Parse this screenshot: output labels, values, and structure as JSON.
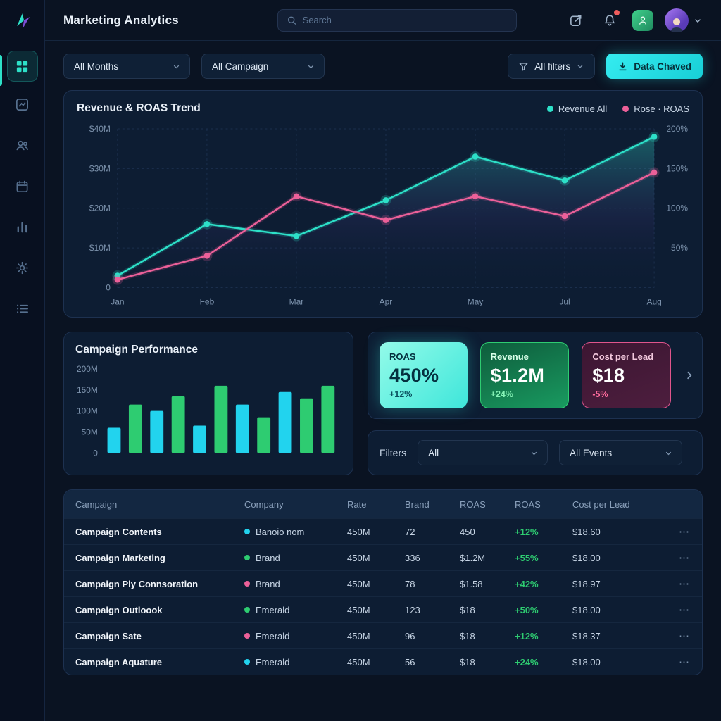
{
  "topbar": {
    "title": "Marketing Analytics",
    "search_placeholder": "Search",
    "icons": [
      "compose-icon",
      "bell-icon",
      "user-tile-icon",
      "avatar",
      "chevron-down-icon"
    ]
  },
  "sidebar": {
    "icons": [
      "dashboard-grid-icon",
      "chart-box-icon",
      "users-icon",
      "calendar-icon",
      "bar-chart-icon",
      "settings-gear-icon",
      "list-icon"
    ],
    "active_index": 0,
    "accent_color": "#2de0c8"
  },
  "filters": {
    "months": "All Months",
    "campaign": "All Campaign",
    "all_filters": "All filters",
    "export_label": "Data Chaved"
  },
  "revenue_chart": {
    "title": "Revenue & ROAS Trend",
    "legend": [
      {
        "label": "Revenue All",
        "color": "#2de0c8"
      },
      {
        "label": "Rose · ROAS",
        "color": "#ec6099"
      }
    ],
    "chart_data": {
      "type": "line",
      "x": [
        "Jan",
        "Feb",
        "Mar",
        "Apr",
        "May",
        "Jul",
        "Aug"
      ],
      "series": [
        {
          "name": "Revenue All",
          "color": "#2de0c8",
          "values": [
            3,
            16,
            13,
            22,
            33,
            27,
            38
          ]
        },
        {
          "name": "Rose ROAS",
          "color": "#ec6099",
          "values": [
            2,
            8,
            23,
            17,
            23,
            18,
            29
          ]
        }
      ],
      "y_left_ticks": [
        "$40M",
        "$30M",
        "$20M",
        "$10M",
        "0"
      ],
      "y_right_ticks": [
        "200%",
        "150%",
        "100%",
        "50%"
      ],
      "ylim": [
        0,
        40
      ],
      "grid": true,
      "legend_position": "top-right"
    }
  },
  "campaign_performance": {
    "title": "Campaign Performance",
    "chart_data": {
      "type": "bar",
      "values": [
        60,
        115,
        100,
        135,
        65,
        160,
        115,
        85,
        145,
        130,
        160
      ],
      "colors": [
        "#22d3ee",
        "#2ecc71",
        "#22d3ee",
        "#2ecc71",
        "#22d3ee",
        "#2ecc71",
        "#22d3ee",
        "#2ecc71",
        "#22d3ee",
        "#2ecc71",
        "#2ecc71"
      ],
      "y_ticks": [
        "200M",
        "150M",
        "100M",
        "50M",
        "0"
      ],
      "ylim": [
        0,
        200
      ],
      "grid": false
    }
  },
  "kpis": [
    {
      "label": "ROAS",
      "value": "450%",
      "change": "+12%",
      "style": "cyan"
    },
    {
      "label": "Revenue",
      "value": "$1.2M",
      "change": "+24%",
      "style": "green"
    },
    {
      "label": "Cost per Lead",
      "value": "$18",
      "change": "-5%",
      "style": "pink"
    }
  ],
  "filter_bar": {
    "label": "Filters",
    "select1": "All",
    "select2": "All Events"
  },
  "table": {
    "headers": [
      "Campaign",
      "Company",
      "Rate",
      "Brand",
      "ROAS",
      "ROAS",
      "Cost per Lead"
    ],
    "rows": [
      {
        "campaign": "Campaign Contents",
        "company": "Banoio nom",
        "dot": "#22d3ee",
        "rate": "450M",
        "brand": "72",
        "roas": "450",
        "change": "+12%",
        "cpl": "$18.60"
      },
      {
        "campaign": "Campaign Marketing",
        "company": "Brand",
        "dot": "#2ecc71",
        "rate": "450M",
        "brand": "336",
        "roas": "$1.2M",
        "change": "+55%",
        "cpl": "$18.00"
      },
      {
        "campaign": "Campaign Ply Connsoration",
        "company": "Brand",
        "dot": "#ec6099",
        "rate": "450M",
        "brand": "78",
        "roas": "$1.58",
        "change": "+42%",
        "cpl": "$18.97"
      },
      {
        "campaign": "Campaign Outloook",
        "company": "Emerald",
        "dot": "#2ecc71",
        "rate": "450M",
        "brand": "123",
        "roas": "$18",
        "change": "+50%",
        "cpl": "$18.00"
      },
      {
        "campaign": "Campaign Sate",
        "company": "Emerald",
        "dot": "#ec6099",
        "rate": "450M",
        "brand": "96",
        "roas": "$18",
        "change": "+12%",
        "cpl": "$18.37"
      },
      {
        "campaign": "Campaign Aquature",
        "company": "Emerald",
        "dot": "#22d3ee",
        "rate": "450M",
        "brand": "56",
        "roas": "$18",
        "change": "+24%",
        "cpl": "$18.00"
      }
    ],
    "row_actions": "⋯"
  }
}
